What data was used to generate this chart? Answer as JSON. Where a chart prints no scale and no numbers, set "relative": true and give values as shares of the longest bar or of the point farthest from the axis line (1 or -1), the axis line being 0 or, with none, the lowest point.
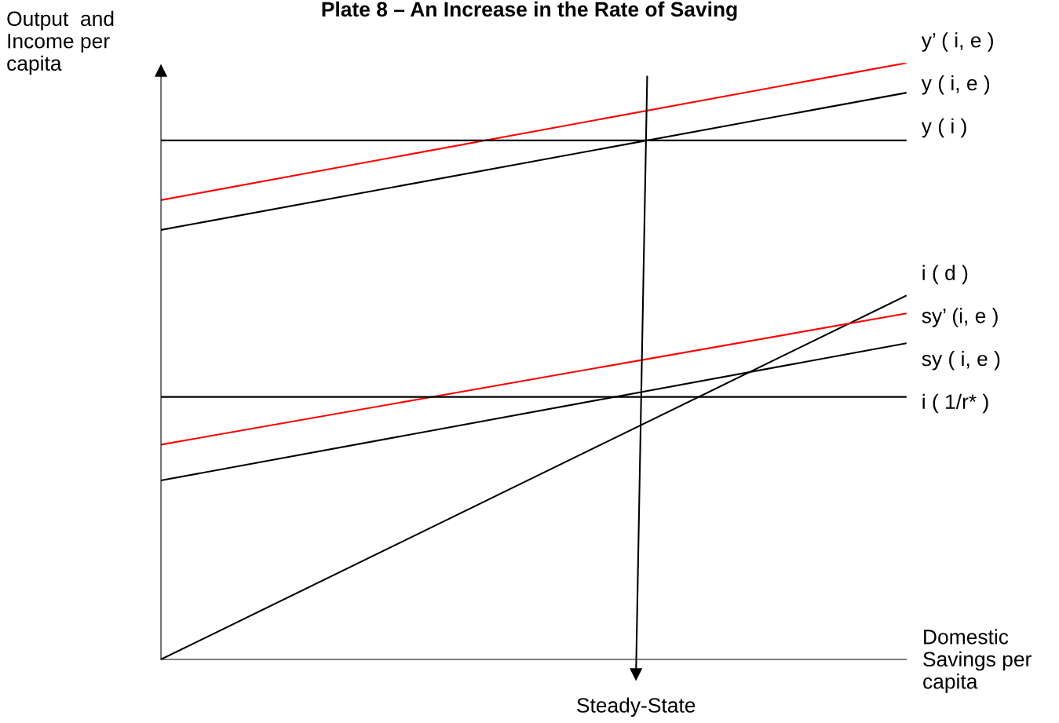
{
  "chart_data": {
    "type": "line",
    "title": "Plate 8 – An Increase in the Rate of Saving",
    "ylabel": "Output  and\nIncome per\ncapita",
    "xlabel": "Domestic\nSavings per\ncapita",
    "relative": true,
    "categories": [
      null,
      null
    ],
    "legend": false,
    "grid": false,
    "marker": "none",
    "line_style": "solid",
    "series": [
      {
        "name": "y’ ( i, e )",
        "color": "#ff0000",
        "values": [
          0.77,
          1.0
        ]
      },
      {
        "name": "y ( i, e )",
        "color": "#000000",
        "values": [
          0.72,
          0.95
        ]
      },
      {
        "name": "y ( i )",
        "color": "#000000",
        "values": [
          0.87,
          0.87
        ]
      },
      {
        "name": "i ( d )",
        "color": "#000000",
        "values": [
          0.0,
          0.61
        ]
      },
      {
        "name": "sy’ (i, e )",
        "color": "#ff0000",
        "values": [
          0.36,
          0.58
        ]
      },
      {
        "name": "sy ( i, e )",
        "color": "#000000",
        "values": [
          0.3,
          0.53
        ]
      },
      {
        "name": "i ( 1/r* )",
        "color": "#000000",
        "values": [
          0.44,
          0.44
        ]
      }
    ],
    "annotations": [
      "Steady-State"
    ]
  }
}
